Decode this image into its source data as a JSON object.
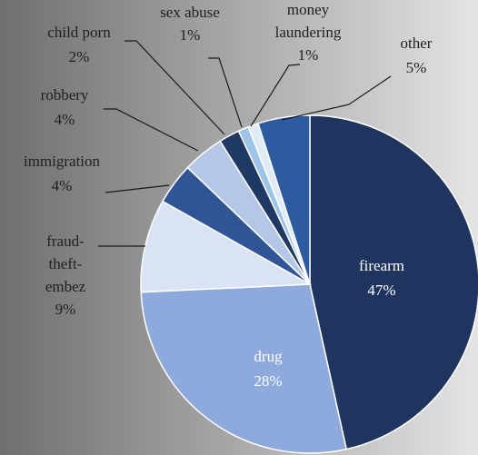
{
  "chart_data": {
    "type": "pie",
    "title": "",
    "slices": [
      {
        "label": "firearm",
        "value": 47,
        "value_label": "47%",
        "color": "#1f3560",
        "label_placement": "inside"
      },
      {
        "label": "drug",
        "value": 28,
        "value_label": "28%",
        "color": "#8ea9db",
        "label_placement": "inside"
      },
      {
        "label": "fraud-theft-embez",
        "lines": [
          "fraud-",
          "theft-",
          "embez"
        ],
        "value": 9,
        "value_label": "9%",
        "color": "#dae3f3",
        "label_placement": "outside"
      },
      {
        "label": "immigration",
        "value": 4,
        "value_label": "4%",
        "color": "#2f5597",
        "label_placement": "outside"
      },
      {
        "label": "robbery",
        "value": 4,
        "value_label": "4%",
        "color": "#b4c7e7",
        "label_placement": "outside"
      },
      {
        "label": "child porn",
        "value": 2,
        "value_label": "2%",
        "color": "#203864",
        "label_placement": "outside"
      },
      {
        "label": "sex abuse",
        "value": 1,
        "value_label": "1%",
        "color": "#9dc3e6",
        "label_placement": "outside"
      },
      {
        "label": "money laundering",
        "lines": [
          "money",
          "laundering"
        ],
        "value": 1,
        "value_label": "1%",
        "color": "#deebf7",
        "label_placement": "outside"
      },
      {
        "label": "other",
        "value": 5,
        "value_label": "5%",
        "color": "#2e5aa0",
        "label_placement": "outside"
      }
    ],
    "start_angle": "12 o'clock",
    "direction": "clockwise",
    "legend": "none",
    "background": "gradient dark gray (left) to light gray (right)"
  }
}
